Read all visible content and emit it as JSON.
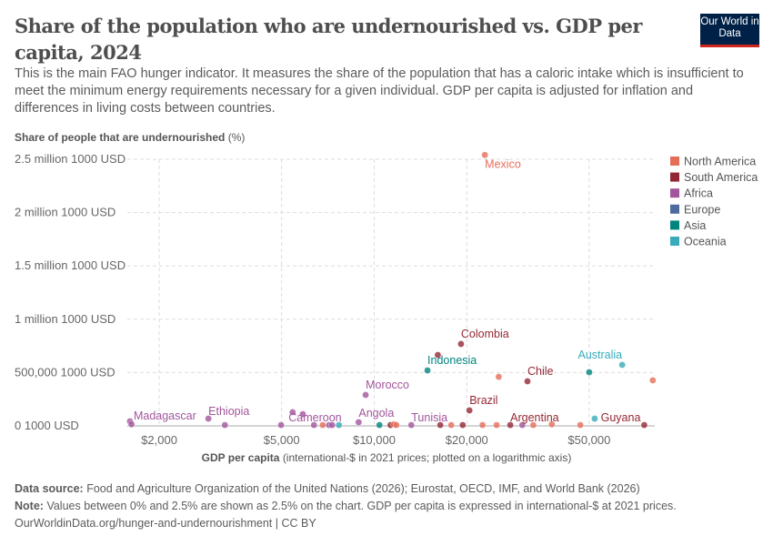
{
  "header": {
    "title": "Share of the population who are undernourished vs. GDP per capita, 2024",
    "subtitle": "This is the main FAO hunger indicator. It measures the share of the population that has a caloric intake which is insufficient to meet the minimum energy requirements necessary for a given individual. GDP per capita is adjusted for inflation and differences in living costs between countries.",
    "logo": "Our World in Data"
  },
  "footer": {
    "source_label": "Data source:",
    "source": "Food and Agriculture Organization of the United Nations (2026); Eurostat, OECD, IMF, and World Bank (2026)",
    "note_label": "Note:",
    "note": "Values between 0% and 2.5% are shown as 2.5% on the chart. GDP per capita is expressed in international-$ at 2021 prices.",
    "link": "OurWorldinData.org/hunger-and-undernourishment | CC BY"
  },
  "chart_data": {
    "type": "scatter",
    "ylabel_bold": "Share of people that are undernourished",
    "ylabel_unit": "(%)",
    "xlabel_bold": "GDP per capita",
    "xlabel_rest": "(international-$ in 2021 prices; plotted on a logarithmic axis)",
    "x_scale": "log",
    "xlim": [
      1575,
      81700
    ],
    "ylim": [
      0,
      2500000
    ],
    "grid": true,
    "legend_placement": "right",
    "x_ticks": [
      {
        "value": 2000,
        "label": "$2,000"
      },
      {
        "value": 5000,
        "label": "$5,000"
      },
      {
        "value": 10000,
        "label": "$10,000"
      },
      {
        "value": 20000,
        "label": "$20,000"
      },
      {
        "value": 50000,
        "label": "$50,000"
      }
    ],
    "y_ticks": [
      {
        "value": 0,
        "label": "0 1000 USD"
      },
      {
        "value": 500000,
        "label": "500,000 1000 USD"
      },
      {
        "value": 1000000,
        "label": "1 million 1000 USD"
      },
      {
        "value": 1500000,
        "label": "1.5 million 1000 USD"
      },
      {
        "value": 2000000,
        "label": "2 million 1000 USD"
      },
      {
        "value": 2500000,
        "label": "2.5 million 1000 USD"
      }
    ],
    "legend": [
      {
        "name": "North America",
        "color": "#E56E5A"
      },
      {
        "name": "South America",
        "color": "#932834"
      },
      {
        "name": "Africa",
        "color": "#A2559C"
      },
      {
        "name": "Europe",
        "color": "#4C6A9C"
      },
      {
        "name": "Asia",
        "color": "#00847E"
      },
      {
        "name": "Oceania",
        "color": "#38AABA"
      }
    ],
    "points": [
      {
        "label": "Mexico",
        "region": "North America",
        "x": 22900,
        "y": 2540000
      },
      {
        "label": "Colombia",
        "region": "South America",
        "x": 19150,
        "y": 768000
      },
      {
        "label": "",
        "region": "South America",
        "x": 16100,
        "y": 665000
      },
      {
        "label": "Indonesia",
        "region": "Asia",
        "x": 14900,
        "y": 520000
      },
      {
        "label": "",
        "region": "North America",
        "x": 25400,
        "y": 460000
      },
      {
        "label": "Chile",
        "region": "South America",
        "x": 31500,
        "y": 418000
      },
      {
        "label": "",
        "region": "Asia",
        "x": 50000,
        "y": 503000
      },
      {
        "label": "Australia",
        "region": "Oceania",
        "x": 64000,
        "y": 572000
      },
      {
        "label": "",
        "region": "North America",
        "x": 80500,
        "y": 427000
      },
      {
        "label": "Morocco",
        "region": "Africa",
        "x": 9380,
        "y": 290000
      },
      {
        "label": "Brazil",
        "region": "South America",
        "x": 20400,
        "y": 145000
      },
      {
        "label": "Madagascar",
        "region": "Africa",
        "x": 1607,
        "y": 43000
      },
      {
        "label": "",
        "region": "Africa",
        "x": 1625,
        "y": 15000
      },
      {
        "label": "Ethiopia",
        "region": "Africa",
        "x": 2890,
        "y": 68000
      },
      {
        "label": "",
        "region": "Africa",
        "x": 3270,
        "y": 8000
      },
      {
        "label": "",
        "region": "Africa",
        "x": 4980,
        "y": 8000
      },
      {
        "label": "",
        "region": "Africa",
        "x": 5430,
        "y": 128000
      },
      {
        "label": "",
        "region": "Africa",
        "x": 5860,
        "y": 110000
      },
      {
        "label": "Cameroon",
        "region": "Africa",
        "x": 6370,
        "y": 8000
      },
      {
        "label": "",
        "region": "North America",
        "x": 6800,
        "y": 8000
      },
      {
        "label": "",
        "region": "Africa",
        "x": 7130,
        "y": 8000
      },
      {
        "label": "",
        "region": "Africa",
        "x": 7300,
        "y": 8000
      },
      {
        "label": "",
        "region": "Oceania",
        "x": 7680,
        "y": 8000
      },
      {
        "label": "Angola",
        "region": "Africa",
        "x": 8900,
        "y": 34000
      },
      {
        "label": "",
        "region": "Asia",
        "x": 10400,
        "y": 8000
      },
      {
        "label": "",
        "region": "South America",
        "x": 11300,
        "y": 8000
      },
      {
        "label": "",
        "region": "North America",
        "x": 11600,
        "y": 15000
      },
      {
        "label": "",
        "region": "North America",
        "x": 11800,
        "y": 8000
      },
      {
        "label": "Tunisia",
        "region": "Africa",
        "x": 13200,
        "y": 8000
      },
      {
        "label": "",
        "region": "South America",
        "x": 16400,
        "y": 8000
      },
      {
        "label": "",
        "region": "North America",
        "x": 17800,
        "y": 8000
      },
      {
        "label": "",
        "region": "South America",
        "x": 19400,
        "y": 8000
      },
      {
        "label": "",
        "region": "North America",
        "x": 22500,
        "y": 8000
      },
      {
        "label": "",
        "region": "North America",
        "x": 25000,
        "y": 8000
      },
      {
        "label": "Argentina",
        "region": "South America",
        "x": 27700,
        "y": 8000
      },
      {
        "label": "",
        "region": "Africa",
        "x": 30300,
        "y": 8000
      },
      {
        "label": "",
        "region": "North America",
        "x": 32900,
        "y": 8000
      },
      {
        "label": "",
        "region": "North America",
        "x": 37800,
        "y": 15000
      },
      {
        "label": "",
        "region": "North America",
        "x": 46800,
        "y": 8000
      },
      {
        "label": "",
        "region": "Oceania",
        "x": 52100,
        "y": 68000
      },
      {
        "label": "Guyana",
        "region": "South America",
        "x": 75500,
        "y": 8000
      }
    ]
  }
}
